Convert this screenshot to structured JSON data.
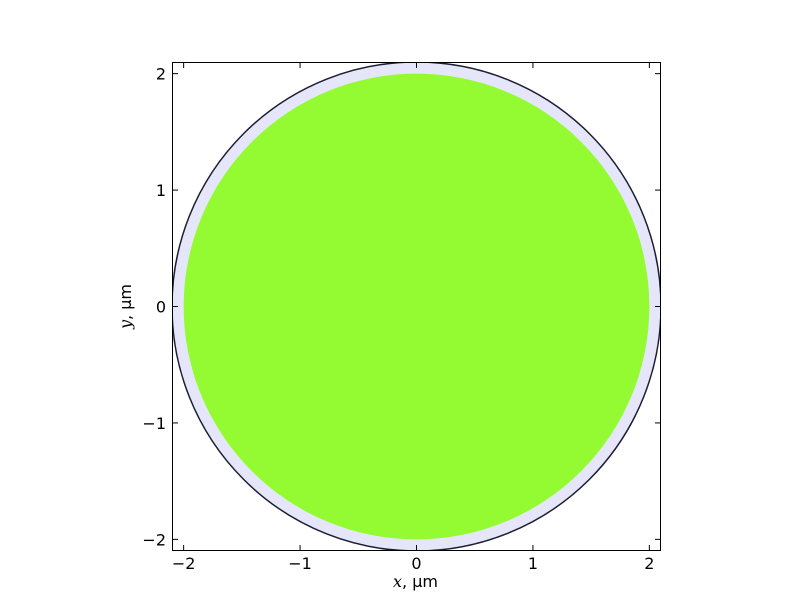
{
  "chart_data": {
    "type": "circle-cross-section",
    "xlabel": {
      "var": "x",
      "rest": ", μm"
    },
    "ylabel": {
      "var": "y",
      "rest": ", μm"
    },
    "xlim": [
      -2.1,
      2.1
    ],
    "ylim": [
      -2.1,
      2.1
    ],
    "xticks": [
      -2,
      -1,
      0,
      1,
      2
    ],
    "yticks": [
      -2,
      -1,
      0,
      1,
      2
    ],
    "xtick_labels": [
      "−2",
      "−1",
      "0",
      "1",
      "2"
    ],
    "ytick_labels": [
      "−2",
      "−1",
      "0",
      "1",
      "2"
    ],
    "grid": false,
    "shapes": [
      {
        "name": "outer-shell",
        "center": [
          0,
          0
        ],
        "radius": 2.1,
        "fill": "#e6e6fa",
        "stroke": "#1e1e32"
      },
      {
        "name": "inner-core",
        "center": [
          0,
          0
        ],
        "radius": 2.0,
        "fill": "#94fa32",
        "stroke": "none"
      }
    ]
  }
}
